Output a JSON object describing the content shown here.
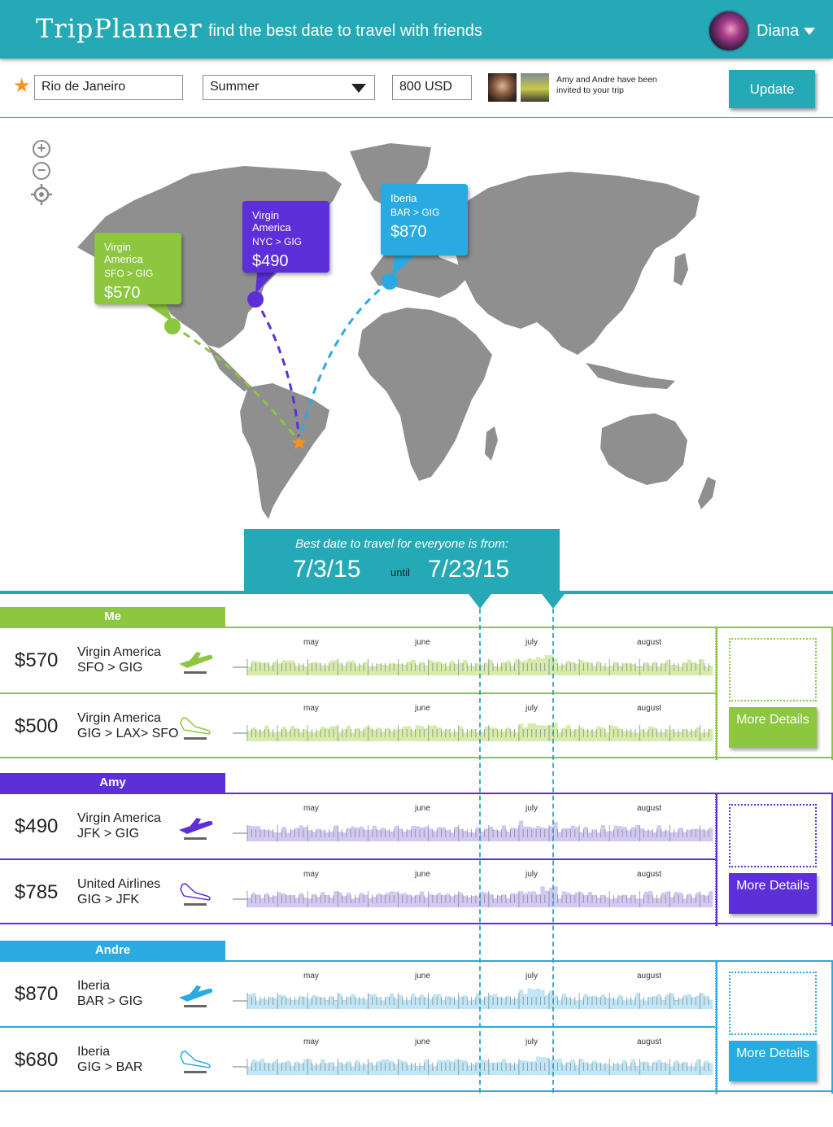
{
  "header": {
    "logo": "TripPlanner",
    "tagline": "find the best date to travel with friends",
    "user_name": "Diana"
  },
  "search": {
    "destination": "Rio de Janeiro",
    "season": "Summer",
    "budget": "800 USD",
    "invite_text": "Amy and Andre have been invited to your trip",
    "update_label": "Update"
  },
  "map": {
    "bubbles": [
      {
        "airline": "Virgin America",
        "route": "SFO > GIG",
        "price": "$570",
        "color": "#8dc63f"
      },
      {
        "airline": "Virgin America",
        "route": "NYC > GIG",
        "price": "$490",
        "color": "#5d2fd8"
      },
      {
        "airline": "Iberia",
        "route": "BAR > GIG",
        "price": "$870",
        "color": "#29abe2"
      }
    ]
  },
  "best": {
    "label": "Best date to travel for everyone is from:",
    "from": "7/3/15",
    "until_label": "until",
    "to": "7/23/15"
  },
  "months": [
    "may",
    "june",
    "july",
    "august"
  ],
  "groups": [
    {
      "name": "Me",
      "color": "#8dc63f",
      "fill": "#d6ecaa",
      "details_label": "More Details",
      "flights": [
        {
          "price": "$570",
          "airline": "Virgin America",
          "route": "SFO > GIG",
          "direction": "takeoff"
        },
        {
          "price": "$500",
          "airline": "Virgin America",
          "route": "GIG > LAX> SFO",
          "direction": "landing"
        }
      ]
    },
    {
      "name": "Amy",
      "color": "#5d2fd8",
      "fill": "#d2c8f3",
      "details_label": "More Details",
      "flights": [
        {
          "price": "$490",
          "airline": "Virgin America",
          "route": "JFK > GIG",
          "direction": "takeoff"
        },
        {
          "price": "$785",
          "airline": "United Airlines",
          "route": "GIG > JFK",
          "direction": "landing"
        }
      ]
    },
    {
      "name": "Andre",
      "color": "#29abe2",
      "fill": "#bfe6f7",
      "details_label": "More Details",
      "flights": [
        {
          "price": "$870",
          "airline": "Iberia",
          "route": "BAR > GIG",
          "direction": "takeoff"
        },
        {
          "price": "$680",
          "airline": "Iberia",
          "route": "GIG > BAR",
          "direction": "landing"
        }
      ]
    }
  ]
}
